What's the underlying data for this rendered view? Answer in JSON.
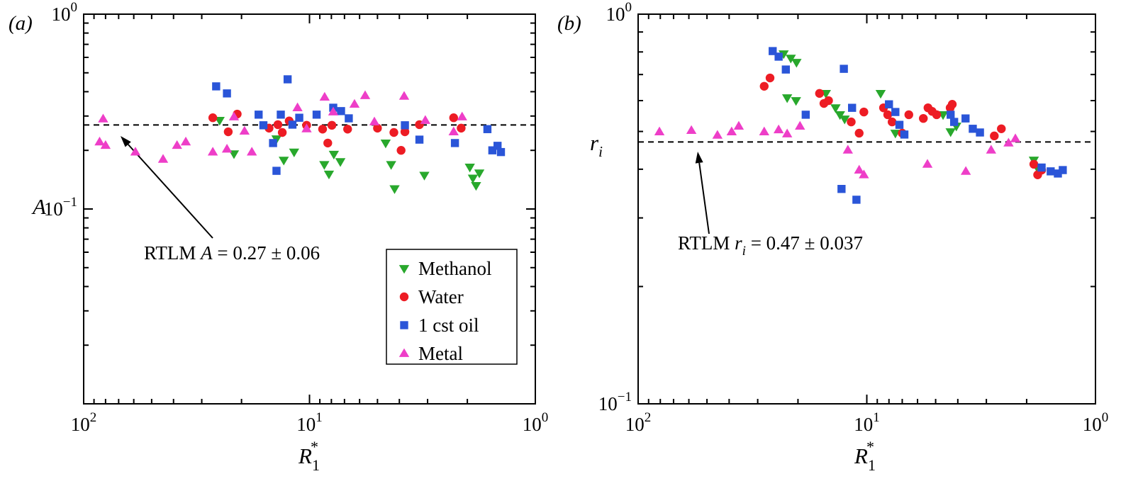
{
  "colors": {
    "methanol": "#28a82c",
    "water": "#ed1c24",
    "oil": "#2a55d8",
    "metal": "#ee3ec8",
    "frame": "#000000",
    "reference_line": "#000000"
  },
  "chart_data": [
    {
      "id": "a",
      "type": "scatter",
      "panel_label": "(a)",
      "x_axis": {
        "scale": "log",
        "reversed": true,
        "min": 1,
        "max": 100,
        "title_base": "R",
        "title_sub": "1",
        "title_sup": "*",
        "labeled_tick_exponents": [
          2,
          1,
          0
        ],
        "tick_label_texts": [
          "10^2",
          "10^1",
          "10^0"
        ]
      },
      "y_axis": {
        "scale": "log",
        "min": 0.01,
        "max": 1,
        "title_base": "A",
        "title_sub": "",
        "labeled_tick_exponents": [
          0,
          -1
        ],
        "tick_label_texts": [
          "10^0",
          "10^-1"
        ]
      },
      "reference_line": {
        "value": 0.27,
        "annotation_prefix": "RTLM ",
        "annotation_symbol": "A",
        "annotation_symbol_sub": "",
        "annotation_suffix": " = 0.27 ± 0.06"
      },
      "legend": {
        "items": [
          "Methanol",
          "Water",
          "1 cst oil",
          "Metal"
        ]
      },
      "series": [
        {
          "name": "Methanol",
          "marker": "triangle-down",
          "color": "#28a82c",
          "points": [
            [
              25,
              0.285
            ],
            [
              21.6,
              0.192
            ],
            [
              14,
              0.229
            ],
            [
              13,
              0.178
            ],
            [
              11.7,
              0.196
            ],
            [
              8.6,
              0.169
            ],
            [
              8.2,
              0.151
            ],
            [
              7.8,
              0.191
            ],
            [
              7.3,
              0.175
            ],
            [
              4.6,
              0.218
            ],
            [
              4.35,
              0.169
            ],
            [
              4.2,
              0.127
            ],
            [
              3.1,
              0.149
            ],
            [
              1.95,
              0.164
            ],
            [
              1.89,
              0.144
            ],
            [
              1.83,
              0.132
            ],
            [
              1.77,
              0.153
            ]
          ]
        },
        {
          "name": "Water",
          "marker": "circle",
          "color": "#ed1c24",
          "points": [
            [
              26.8,
              0.294
            ],
            [
              22.9,
              0.249
            ],
            [
              20.9,
              0.307
            ],
            [
              15.1,
              0.26
            ],
            [
              13.8,
              0.271
            ],
            [
              13.2,
              0.247
            ],
            [
              12.3,
              0.283
            ],
            [
              10.3,
              0.269
            ],
            [
              8.75,
              0.257
            ],
            [
              8.3,
              0.218
            ],
            [
              7.96,
              0.269
            ],
            [
              6.78,
              0.257
            ],
            [
              5,
              0.26
            ],
            [
              4.23,
              0.247
            ],
            [
              3.93,
              0.2
            ],
            [
              3.78,
              0.249
            ],
            [
              3.26,
              0.271
            ],
            [
              2.3,
              0.294
            ],
            [
              2.13,
              0.26
            ]
          ]
        },
        {
          "name": "1 cst oil",
          "marker": "square",
          "color": "#2a55d8",
          "points": [
            [
              25.9,
              0.426
            ],
            [
              23.2,
              0.392
            ],
            [
              16.8,
              0.305
            ],
            [
              16,
              0.269
            ],
            [
              14.5,
              0.218
            ],
            [
              14,
              0.157
            ],
            [
              13.4,
              0.305
            ],
            [
              12.5,
              0.463
            ],
            [
              11.9,
              0.271
            ],
            [
              11.1,
              0.294
            ],
            [
              9.3,
              0.305
            ],
            [
              7.85,
              0.331
            ],
            [
              7.25,
              0.318
            ],
            [
              6.7,
              0.292
            ],
            [
              3.78,
              0.269
            ],
            [
              3.26,
              0.227
            ],
            [
              2.27,
              0.218
            ],
            [
              1.63,
              0.257
            ],
            [
              1.55,
              0.2
            ],
            [
              1.47,
              0.211
            ],
            [
              1.42,
              0.196
            ]
          ]
        },
        {
          "name": "Metal",
          "marker": "triangle-up",
          "color": "#ee3ec8",
          "points": [
            [
              82,
              0.29
            ],
            [
              85,
              0.221
            ],
            [
              80,
              0.212
            ],
            [
              59,
              0.196
            ],
            [
              44.5,
              0.18
            ],
            [
              38.6,
              0.212
            ],
            [
              35.3,
              0.221
            ],
            [
              26.8,
              0.196
            ],
            [
              23.2,
              0.203
            ],
            [
              21.6,
              0.297
            ],
            [
              19.4,
              0.251
            ],
            [
              18,
              0.196
            ],
            [
              11.3,
              0.331
            ],
            [
              10.3,
              0.258
            ],
            [
              8.57,
              0.375
            ],
            [
              7.85,
              0.315
            ],
            [
              6.32,
              0.345
            ],
            [
              5.67,
              0.382
            ],
            [
              5.16,
              0.28
            ],
            [
              3.81,
              0.379
            ],
            [
              3.07,
              0.285
            ],
            [
              2.3,
              0.249
            ],
            [
              2.11,
              0.297
            ]
          ]
        }
      ]
    },
    {
      "id": "b",
      "type": "scatter",
      "panel_label": "(b)",
      "x_axis": {
        "scale": "log",
        "reversed": true,
        "min": 1,
        "max": 100,
        "title_base": "R",
        "title_sub": "1",
        "title_sup": "*",
        "labeled_tick_exponents": [
          2,
          1,
          0
        ],
        "tick_label_texts": [
          "10^2",
          "10^1",
          "10^0"
        ]
      },
      "y_axis": {
        "scale": "log",
        "min": 0.1,
        "max": 1,
        "title_base": "r",
        "title_sub": "i",
        "labeled_tick_exponents": [
          0,
          -1
        ],
        "tick_label_texts": [
          "10^0",
          "10^-1"
        ]
      },
      "reference_line": {
        "value": 0.47,
        "annotation_prefix": "RTLM ",
        "annotation_symbol": "r",
        "annotation_symbol_sub": "i",
        "annotation_suffix": " = 0.47 ± 0.037"
      },
      "legend": {
        "items": []
      },
      "series": [
        {
          "name": "Methanol",
          "marker": "triangle-down",
          "color": "#28a82c",
          "points": [
            [
              23.1,
              0.791
            ],
            [
              21.5,
              0.771
            ],
            [
              20.3,
              0.752
            ],
            [
              22.3,
              0.61
            ],
            [
              20.4,
              0.6
            ],
            [
              15.1,
              0.626
            ],
            [
              13.7,
              0.575
            ],
            [
              13.1,
              0.552
            ],
            [
              12.5,
              0.538
            ],
            [
              8.7,
              0.626
            ],
            [
              7.5,
              0.495
            ],
            [
              4.64,
              0.552
            ],
            [
              4.3,
              0.499
            ],
            [
              4.06,
              0.516
            ],
            [
              1.86,
              0.422
            ],
            [
              1.79,
              0.402
            ]
          ]
        },
        {
          "name": "Water",
          "marker": "circle",
          "color": "#ed1c24",
          "points": [
            [
              28.1,
              0.653
            ],
            [
              26.5,
              0.686
            ],
            [
              16.1,
              0.626
            ],
            [
              15.4,
              0.59
            ],
            [
              14.7,
              0.6
            ],
            [
              11.7,
              0.529
            ],
            [
              10.8,
              0.495
            ],
            [
              10.3,
              0.561
            ],
            [
              8.45,
              0.575
            ],
            [
              8.1,
              0.552
            ],
            [
              7.75,
              0.529
            ],
            [
              7,
              0.495
            ],
            [
              6.55,
              0.552
            ],
            [
              5.66,
              0.54
            ],
            [
              5.4,
              0.575
            ],
            [
              5.18,
              0.563
            ],
            [
              4.95,
              0.552
            ],
            [
              4.32,
              0.575
            ],
            [
              4.23,
              0.587
            ],
            [
              2.77,
              0.487
            ],
            [
              2.58,
              0.508
            ],
            [
              1.86,
              0.412
            ],
            [
              1.79,
              0.387
            ],
            [
              1.72,
              0.398
            ]
          ]
        },
        {
          "name": "1 cst oil",
          "marker": "square",
          "color": "#2a55d8",
          "points": [
            [
              25.8,
              0.804
            ],
            [
              24.3,
              0.778
            ],
            [
              22.6,
              0.721
            ],
            [
              18.5,
              0.552
            ],
            [
              12.6,
              0.724
            ],
            [
              11.6,
              0.575
            ],
            [
              12.9,
              0.356
            ],
            [
              11.1,
              0.334
            ],
            [
              8,
              0.587
            ],
            [
              7.5,
              0.561
            ],
            [
              7.2,
              0.52
            ],
            [
              6.85,
              0.491
            ],
            [
              4.3,
              0.552
            ],
            [
              4.15,
              0.529
            ],
            [
              3.7,
              0.54
            ],
            [
              3.44,
              0.508
            ],
            [
              3.2,
              0.497
            ],
            [
              1.72,
              0.404
            ],
            [
              1.57,
              0.395
            ],
            [
              1.46,
              0.39
            ],
            [
              1.39,
              0.398
            ]
          ]
        },
        {
          "name": "Metal",
          "marker": "triangle-up",
          "color": "#ee3ec8",
          "points": [
            [
              80.7,
              0.499
            ],
            [
              58.5,
              0.503
            ],
            [
              45,
              0.489
            ],
            [
              39,
              0.499
            ],
            [
              36.3,
              0.516
            ],
            [
              28.1,
              0.499
            ],
            [
              24.3,
              0.505
            ],
            [
              22.3,
              0.493
            ],
            [
              19.6,
              0.516
            ],
            [
              12.1,
              0.448
            ],
            [
              10.8,
              0.398
            ],
            [
              10.3,
              0.387
            ],
            [
              5.43,
              0.412
            ],
            [
              3.69,
              0.395
            ],
            [
              2.86,
              0.448
            ],
            [
              2.4,
              0.467
            ],
            [
              2.24,
              0.479
            ]
          ]
        }
      ]
    }
  ]
}
